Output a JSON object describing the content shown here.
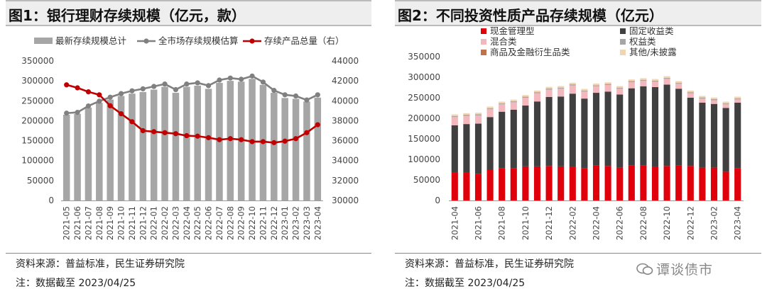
{
  "chart1": {
    "title": "图1：银行理财存续规模（亿元，款）",
    "source": "资料来源：普益标准，民生证券研究院",
    "note": "注：数据截至 2023/04/25",
    "colors": {
      "bar": "#a6a6a6",
      "line_gray": "#808080",
      "line_red": "#c00000"
    },
    "chart_data": {
      "type": "bar+line",
      "categories": [
        "2021-05",
        "2021-06",
        "2021-07",
        "2021-08",
        "2021-09",
        "2021-10",
        "2021-11",
        "2021-12",
        "2022-01",
        "2022-02",
        "2022-03",
        "2022-04",
        "2022-05",
        "2022-06",
        "2022-07",
        "2022-08",
        "2022-09",
        "2022-10",
        "2022-11",
        "2022-12",
        "2023-01",
        "2023-02",
        "2023-03",
        "2023-04"
      ],
      "series": [
        {
          "name": "最新存续规模总计",
          "kind": "bar",
          "axis": "left",
          "values": [
            215000,
            217000,
            233000,
            245000,
            253000,
            262000,
            268000,
            272000,
            278000,
            285000,
            270000,
            285000,
            288000,
            280000,
            295000,
            300000,
            298000,
            305000,
            290000,
            270000,
            257000,
            255000,
            248000,
            258000
          ]
        },
        {
          "name": "全市场存续规模估算",
          "kind": "line",
          "axis": "left",
          "values": [
            219000,
            221000,
            237000,
            249000,
            259000,
            268000,
            275000,
            280000,
            286000,
            292000,
            278000,
            292000,
            295000,
            288000,
            302000,
            307000,
            304000,
            312000,
            297000,
            276000,
            265000,
            262000,
            252000,
            265000
          ]
        },
        {
          "name": "存续产品总量（右）",
          "kind": "line",
          "axis": "right",
          "values": [
            41600,
            41300,
            40900,
            40600,
            39500,
            38700,
            37900,
            37000,
            36900,
            36800,
            36700,
            36500,
            36450,
            36300,
            36100,
            36200,
            36100,
            35900,
            35900,
            35800,
            35950,
            36200,
            36800,
            37600
          ]
        }
      ],
      "ylim_left": [
        0,
        350000
      ],
      "yticks_left": [
        0,
        50000,
        100000,
        150000,
        200000,
        250000,
        300000,
        350000
      ],
      "ylim_right": [
        30000,
        44000
      ],
      "yticks_right": [
        30000,
        32000,
        34000,
        36000,
        38000,
        40000,
        42000,
        44000
      ]
    }
  },
  "chart2": {
    "title": "图2：不同投资性质产品存续规模（亿元）",
    "source": "资料来源：普益标准，民生证券研究院",
    "note": "注：数据截至 2023/04/25",
    "watermark": "谭谈债市",
    "colors": {
      "现金管理型": "#e0000b",
      "固定收益类": "#404040",
      "混合类": "#f2b8bd",
      "权益类": "#a6a6a6",
      "商品及金融衍生品类": "#c0714f",
      "其他/未披露": "#f0d6b0"
    },
    "chart_data": {
      "type": "stacked-bar",
      "categories": [
        "2021-04",
        "2021-05",
        "2021-06",
        "2021-07",
        "2021-08",
        "2021-09",
        "2021-10",
        "2021-11",
        "2021-12",
        "2022-01",
        "2022-02",
        "2022-03",
        "2022-04",
        "2022-05",
        "2022-06",
        "2022-07",
        "2022-08",
        "2022-09",
        "2022-10",
        "2022-11",
        "2022-12",
        "2023-01",
        "2023-02",
        "2023-03",
        "2023-04"
      ],
      "tick_labels": [
        "2021-04",
        "2021-06",
        "2021-08",
        "2021-10",
        "2021-12",
        "2022-02",
        "2022-04",
        "2022-06",
        "2022-08",
        "2022-10",
        "2022-12",
        "2023-02",
        "2023-04"
      ],
      "series": [
        {
          "name": "现金管理型",
          "values": [
            68000,
            68000,
            65000,
            75000,
            78000,
            78000,
            83000,
            83000,
            84000,
            83000,
            82000,
            78000,
            86000,
            84000,
            80000,
            85000,
            85000,
            82000,
            84000,
            86000,
            84000,
            80000,
            80000,
            70000,
            78000
          ]
        },
        {
          "name": "固定收益类",
          "values": [
            115000,
            118000,
            122000,
            128000,
            138000,
            143000,
            148000,
            158000,
            168000,
            170000,
            178000,
            170000,
            176000,
            181000,
            178000,
            188000,
            193000,
            194000,
            198000,
            186000,
            166000,
            158000,
            155000,
            155000,
            160000
          ]
        },
        {
          "name": "混合类",
          "values": [
            20000,
            20000,
            20000,
            19000,
            18000,
            18000,
            19000,
            20000,
            18000,
            19000,
            20000,
            17000,
            16000,
            16000,
            14000,
            15000,
            13000,
            13000,
            14000,
            12000,
            11000,
            10000,
            9000,
            9000,
            8000
          ]
        },
        {
          "name": "权益类",
          "values": [
            2000,
            2000,
            2000,
            2000,
            2000,
            2000,
            2000,
            2000,
            2000,
            2000,
            2000,
            2000,
            2000,
            2000,
            2000,
            2000,
            2000,
            2000,
            2000,
            2000,
            2000,
            2000,
            2000,
            2000,
            2000
          ]
        },
        {
          "name": "商品及金融衍生品类",
          "values": [
            500,
            500,
            500,
            500,
            500,
            500,
            500,
            500,
            500,
            500,
            500,
            500,
            500,
            500,
            500,
            500,
            500,
            500,
            500,
            500,
            500,
            500,
            500,
            500,
            500
          ]
        },
        {
          "name": "其他/未披露",
          "values": [
            4000,
            4000,
            4000,
            4000,
            4000,
            4000,
            4000,
            4000,
            4000,
            4000,
            4000,
            4000,
            4000,
            4000,
            4000,
            4000,
            4000,
            4000,
            4000,
            4000,
            4000,
            4000,
            4000,
            4000,
            4000
          ]
        }
      ],
      "ylim": [
        0,
        350000
      ],
      "yticks": [
        0,
        50000,
        100000,
        150000,
        200000,
        250000,
        300000,
        350000
      ]
    }
  }
}
